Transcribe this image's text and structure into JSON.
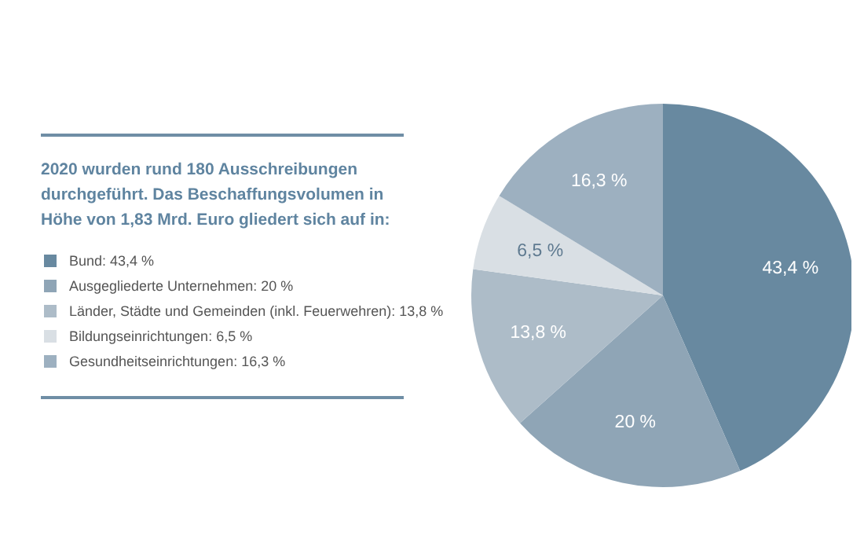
{
  "chart_data": {
    "type": "pie",
    "title": "2020 wurden rund 180 Ausschreibungen durchgeführt. Das Beschaffungsvolumen in Höhe von 1,83 Mrd. Euro gliedert sich auf in:",
    "categories": [
      "Bund",
      "Ausgegliederte Unternehmen",
      "Länder, Städte und Gemeinden (inkl. Feuerwehren)",
      "Bildungseinrichtungen",
      "Gesundheitseinrichtungen"
    ],
    "values": [
      43.4,
      20,
      13.8,
      6.5,
      16.3
    ],
    "value_labels": [
      "43,4 %",
      "20 %",
      "13,8 %",
      "6,5 %",
      "16,3 %"
    ],
    "colors": [
      "#6889a0",
      "#8fa5b6",
      "#adbcc8",
      "#d9dfe4",
      "#9db0c0"
    ],
    "legend": "left"
  }
}
